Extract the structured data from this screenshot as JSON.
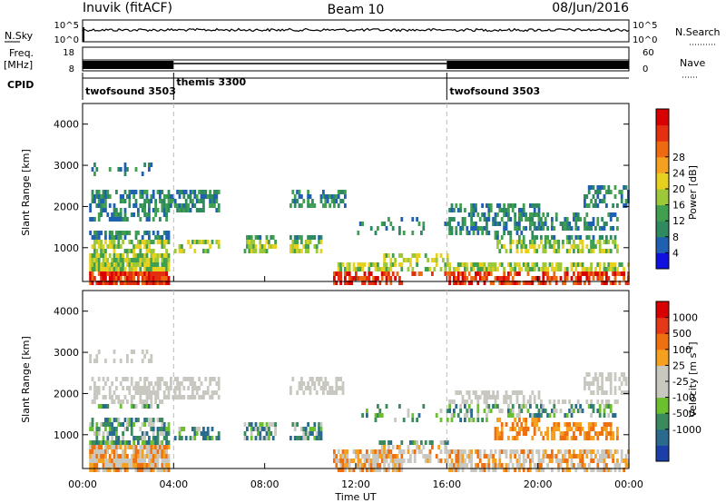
{
  "header": {
    "station": "Inuvik (fitACF)",
    "beam": "Beam 10",
    "date": "08/Jun/2016"
  },
  "top_panels": {
    "nsky_label": "N.Sky",
    "nsky_ticks": [
      "10^5",
      "10^0"
    ],
    "nsearch_label": "N.Search",
    "nsearch_ticks": [
      "10^5",
      "10^0"
    ],
    "freq_label_1": "Freq.",
    "freq_label_2": "[MHz]",
    "freq_ticks": [
      "18",
      "8"
    ],
    "nave_label": "Nave",
    "nave_ticks": [
      "60",
      "0"
    ],
    "cpid_label": "CPID",
    "cpid_segments": [
      {
        "name": "twofsound 3503",
        "start": 0,
        "end": 4
      },
      {
        "name": "themis 3300",
        "start": 4,
        "end": 16
      },
      {
        "name": "twofsound 3503",
        "start": 16,
        "end": 24
      }
    ]
  },
  "chart_data": [
    {
      "type": "heatmap",
      "name": "power",
      "ylabel": "Slant Range [km]",
      "xlabel": "Time UT",
      "x_ticks": [
        "00:00",
        "04:00",
        "08:00",
        "12:00",
        "16:00",
        "20:00",
        "00:00"
      ],
      "xlim_hours": [
        0,
        24
      ],
      "ylim": [
        180,
        4500
      ],
      "y_ticks": [
        1000,
        2000,
        3000,
        4000
      ],
      "colorbar": {
        "label": "Power [dB]",
        "tick_labels": [
          "4",
          "8",
          "12",
          "16",
          "20",
          "24",
          "28"
        ],
        "colors": [
          "#1010e0",
          "#2060b0",
          "#308a60",
          "#40a050",
          "#9cc83a",
          "#e6d020",
          "#f5a020",
          "#ee6a10",
          "#e43010",
          "#d80000"
        ]
      }
    },
    {
      "type": "heatmap",
      "name": "velocity",
      "ylabel": "Slant Range [km]",
      "xlabel": "Time UT",
      "x_ticks": [
        "00:00",
        "04:00",
        "08:00",
        "12:00",
        "16:00",
        "20:00",
        "00:00"
      ],
      "xlim_hours": [
        0,
        24
      ],
      "ylim": [
        180,
        4500
      ],
      "y_ticks": [
        1000,
        2000,
        3000,
        4000
      ],
      "colorbar": {
        "label": "Velocity [m s",
        "label_sup": "-1",
        "label_end": "]",
        "tick_labels": [
          "1000",
          "500",
          "100",
          "25",
          "-25",
          "-100",
          "-500",
          "-1000"
        ],
        "colors": [
          "#1c3ea8",
          "#2a6a8e",
          "#3a8a5e",
          "#6cc030",
          "#c8c8c0",
          "#c8c8c0",
          "#f5a020",
          "#ee7010",
          "#e43818",
          "#d80000"
        ]
      }
    }
  ],
  "x_axis_title": "Time UT"
}
